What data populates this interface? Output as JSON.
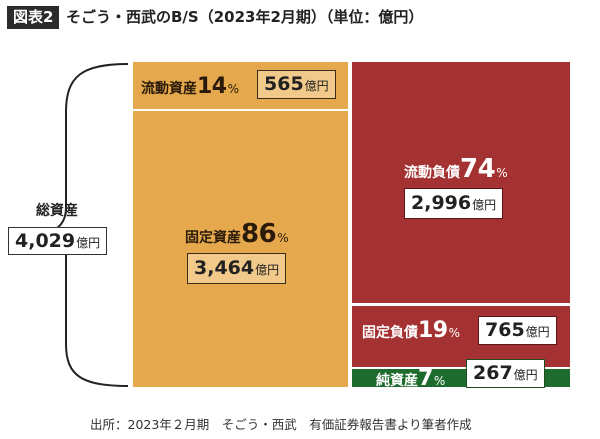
{
  "header": {
    "badge": "図表2",
    "title": "そごう・西武のB/S（2023年2月期）（単位：億円）"
  },
  "total": {
    "label": "総資産",
    "value": "4,029",
    "unit": "億円"
  },
  "assets": {
    "current": {
      "label": "流動資産",
      "pct": "14",
      "pct_sign": "%",
      "value": "565",
      "unit": "億円"
    },
    "fixed": {
      "label": "固定資産",
      "pct": "86",
      "pct_sign": "%",
      "value": "3,464",
      "unit": "億円"
    }
  },
  "liabilities": {
    "current": {
      "label": "流動負債",
      "pct": "74",
      "pct_sign": "%",
      "value": "2,996",
      "unit": "億円"
    },
    "fixed": {
      "label": "固定負債",
      "pct": "19",
      "pct_sign": "%",
      "value": "765",
      "unit": "億円"
    }
  },
  "net_assets": {
    "label": "純資産",
    "pct": "7",
    "pct_sign": "%",
    "value": "267",
    "unit": "億円"
  },
  "source": "出所：2023年２月期　そごう・西武　有価証券報告書より筆者作成",
  "colors": {
    "assets": "#e5a84c",
    "liabilities": "#a53232",
    "net_assets": "#1e6b2e"
  },
  "chart_data": {
    "type": "table",
    "title": "そごう・西武のB/S（2023年2月期）（単位：億円）",
    "unit": "億円",
    "total_assets": 4029,
    "assets": [
      {
        "name": "流動資産",
        "value": 565,
        "percent": 14
      },
      {
        "name": "固定資産",
        "value": 3464,
        "percent": 86
      }
    ],
    "liabilities_and_equity": [
      {
        "name": "流動負債",
        "value": 2996,
        "percent": 74
      },
      {
        "name": "固定負債",
        "value": 765,
        "percent": 19
      },
      {
        "name": "純資産",
        "value": 267,
        "percent": 7
      }
    ]
  }
}
